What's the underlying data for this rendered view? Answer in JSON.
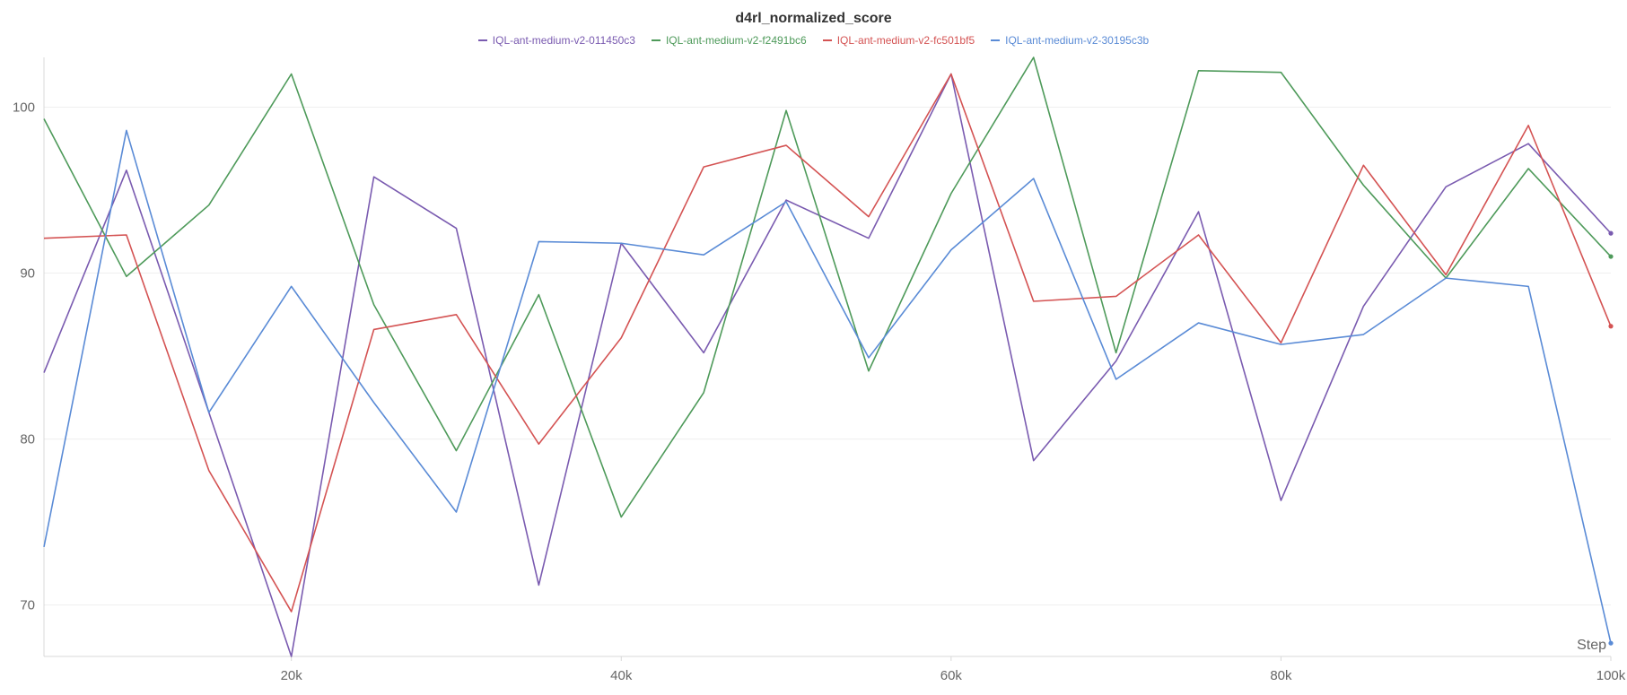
{
  "chart_data": {
    "type": "line",
    "title": "d4rl_normalized_score",
    "xlabel": "Step",
    "ylabel": "",
    "x": [
      5000,
      10000,
      15000,
      20000,
      25000,
      30000,
      35000,
      40000,
      45000,
      50000,
      55000,
      60000,
      65000,
      70000,
      75000,
      80000,
      85000,
      90000,
      95000,
      100000
    ],
    "xlim": [
      5000,
      100000
    ],
    "ylim": [
      66.9,
      103.0
    ],
    "xticks": [
      20000,
      40000,
      60000,
      80000,
      100000
    ],
    "xtick_labels": [
      "20k",
      "40k",
      "60k",
      "80k",
      "100k"
    ],
    "yticks": [
      70,
      80,
      90,
      100
    ],
    "ytick_labels": [
      "70",
      "80",
      "90",
      "100"
    ],
    "grid": true,
    "legend_position": "top-center",
    "series": [
      {
        "name": "IQL-ant-medium-v2-011450c3",
        "color": "#7a5bb0",
        "values": [
          84.0,
          96.2,
          81.6,
          66.9,
          95.8,
          92.7,
          71.2,
          91.8,
          85.2,
          94.4,
          92.1,
          102.0,
          78.7,
          84.7,
          93.7,
          76.3,
          88.0,
          95.2,
          97.8,
          92.4
        ]
      },
      {
        "name": "IQL-ant-medium-v2-f2491bc6",
        "color": "#4e9a5a",
        "values": [
          99.3,
          89.8,
          94.1,
          102.0,
          88.1,
          79.3,
          88.7,
          75.3,
          82.8,
          99.8,
          84.1,
          94.8,
          103.0,
          85.2,
          102.2,
          102.1,
          95.3,
          89.7,
          96.3,
          91.0
        ]
      },
      {
        "name": "IQL-ant-medium-v2-fc501bf5",
        "color": "#d45353",
        "values": [
          92.1,
          92.3,
          78.1,
          69.6,
          86.6,
          87.5,
          79.7,
          86.1,
          96.4,
          97.7,
          93.4,
          102.0,
          88.3,
          88.6,
          92.3,
          85.8,
          96.5,
          89.9,
          98.9,
          86.8
        ]
      },
      {
        "name": "IQL-ant-medium-v2-30195c3b",
        "color": "#5a8bd6",
        "values": [
          73.5,
          98.6,
          81.6,
          89.2,
          82.2,
          75.6,
          91.9,
          91.8,
          91.1,
          94.3,
          84.9,
          91.4,
          95.7,
          83.6,
          87.0,
          85.7,
          86.3,
          89.7,
          89.2,
          67.7
        ]
      }
    ]
  }
}
